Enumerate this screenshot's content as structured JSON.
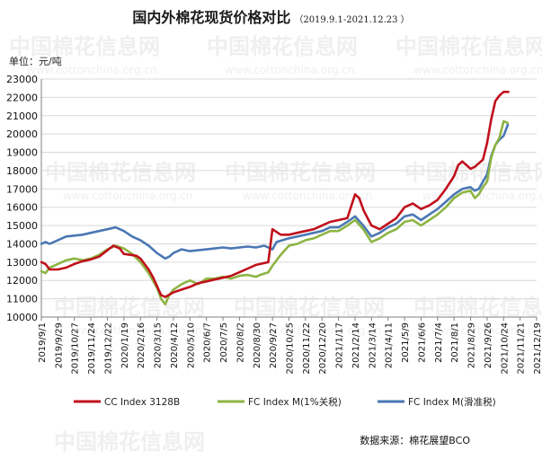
{
  "header": {
    "title": "国内外棉花现货价格对比",
    "subtitle": "（2019.9.1-2021.12.23 ）",
    "unit": "单位：元/吨"
  },
  "footer": {
    "source": "数据来源：棉花展望BCO"
  },
  "watermark": {
    "cn": "中国棉花信息网",
    "url": "www.cottonchina.org.cn"
  },
  "colors": {
    "cc": "#c0101c",
    "fc1": "#8db443",
    "fc2": "#4a77b4",
    "axis": "#7f7f7f",
    "grid": "#d9d9d9"
  },
  "chart_data": {
    "type": "line",
    "ylim": [
      10000,
      23000
    ],
    "yticks": [
      10000,
      11000,
      12000,
      13000,
      14000,
      15000,
      16000,
      17000,
      18000,
      19000,
      20000,
      21000,
      22000,
      23000
    ],
    "xlim": [
      "2019-09-01",
      "2021-12-19"
    ],
    "xticks": [
      "2019/9/1",
      "2019/9/29",
      "2019/10/27",
      "2019/11/24",
      "2019/12/22",
      "2020/1/19",
      "2020/2/16",
      "2020/3/15",
      "2020/4/12",
      "2020/5/10",
      "2020/6/7",
      "2020/7/5",
      "2020/8/2",
      "2020/8/30",
      "2020/9/27",
      "2020/10/25",
      "2020/11/22",
      "2020/12/20",
      "2021/1/17",
      "2021/2/14",
      "2021/3/14",
      "2021/4/11",
      "2021/5/9",
      "2021/6/6",
      "2021/7/4",
      "2021/8/1",
      "2021/8/29",
      "2021/9/26",
      "2021/10/24",
      "2021/11/21",
      "2021/12/19"
    ],
    "grid": "horizontal",
    "legend_position": "bottom",
    "series": [
      {
        "name": "CC Index 3128B",
        "color": "#c0101c",
        "points": [
          [
            "2019-09-01",
            13000
          ],
          [
            "2019-09-08",
            12900
          ],
          [
            "2019-09-15",
            12600
          ],
          [
            "2019-09-29",
            12600
          ],
          [
            "2019-10-13",
            12700
          ],
          [
            "2019-10-27",
            12900
          ],
          [
            "2019-11-10",
            13050
          ],
          [
            "2019-11-24",
            13150
          ],
          [
            "2019-12-08",
            13300
          ],
          [
            "2019-12-22",
            13650
          ],
          [
            "2020-01-01",
            13900
          ],
          [
            "2020-01-12",
            13750
          ],
          [
            "2020-01-19",
            13450
          ],
          [
            "2020-02-09",
            13350
          ],
          [
            "2020-02-16",
            13200
          ],
          [
            "2020-02-23",
            12900
          ],
          [
            "2020-03-01",
            12600
          ],
          [
            "2020-03-08",
            12200
          ],
          [
            "2020-03-15",
            11700
          ],
          [
            "2020-03-22",
            11200
          ],
          [
            "2020-03-29",
            11100
          ],
          [
            "2020-04-12",
            11350
          ],
          [
            "2020-04-26",
            11500
          ],
          [
            "2020-05-10",
            11650
          ],
          [
            "2020-05-24",
            11850
          ],
          [
            "2020-06-07",
            11950
          ],
          [
            "2020-06-21",
            12050
          ],
          [
            "2020-07-05",
            12150
          ],
          [
            "2020-07-19",
            12250
          ],
          [
            "2020-08-02",
            12450
          ],
          [
            "2020-08-16",
            12650
          ],
          [
            "2020-08-30",
            12850
          ],
          [
            "2020-09-13",
            12950
          ],
          [
            "2020-09-20",
            13000
          ],
          [
            "2020-09-27",
            14800
          ],
          [
            "2020-10-11",
            14500
          ],
          [
            "2020-10-25",
            14500
          ],
          [
            "2020-11-08",
            14600
          ],
          [
            "2020-11-22",
            14700
          ],
          [
            "2020-12-06",
            14800
          ],
          [
            "2020-12-20",
            15000
          ],
          [
            "2021-01-03",
            15200
          ],
          [
            "2021-01-17",
            15300
          ],
          [
            "2021-02-01",
            15400
          ],
          [
            "2021-02-07",
            16000
          ],
          [
            "2021-02-14",
            16700
          ],
          [
            "2021-02-21",
            16500
          ],
          [
            "2021-03-01",
            15800
          ],
          [
            "2021-03-14",
            15000
          ],
          [
            "2021-03-28",
            14800
          ],
          [
            "2021-04-11",
            15100
          ],
          [
            "2021-04-25",
            15400
          ],
          [
            "2021-05-09",
            16000
          ],
          [
            "2021-05-23",
            16200
          ],
          [
            "2021-06-06",
            15900
          ],
          [
            "2021-06-20",
            16100
          ],
          [
            "2021-07-04",
            16400
          ],
          [
            "2021-07-18",
            17000
          ],
          [
            "2021-08-01",
            17700
          ],
          [
            "2021-08-08",
            18300
          ],
          [
            "2021-08-15",
            18500
          ],
          [
            "2021-08-29",
            18100
          ],
          [
            "2021-09-05",
            18200
          ],
          [
            "2021-09-12",
            18400
          ],
          [
            "2021-09-19",
            18600
          ],
          [
            "2021-09-26",
            19500
          ],
          [
            "2021-10-03",
            20800
          ],
          [
            "2021-10-10",
            21800
          ],
          [
            "2021-10-17",
            22100
          ],
          [
            "2021-10-24",
            22300
          ],
          [
            "2021-11-01",
            22300
          ]
        ]
      },
      {
        "name": "FC Index M(1%关税)",
        "color": "#8db443",
        "points": [
          [
            "2019-09-01",
            12500
          ],
          [
            "2019-09-08",
            12400
          ],
          [
            "2019-09-15",
            12700
          ],
          [
            "2019-09-29",
            12900
          ],
          [
            "2019-10-13",
            13100
          ],
          [
            "2019-10-27",
            13200
          ],
          [
            "2019-11-10",
            13100
          ],
          [
            "2019-11-24",
            13200
          ],
          [
            "2019-12-08",
            13400
          ],
          [
            "2019-12-22",
            13700
          ],
          [
            "2020-01-05",
            13900
          ],
          [
            "2020-01-19",
            13750
          ],
          [
            "2020-02-02",
            13450
          ],
          [
            "2020-02-16",
            13000
          ],
          [
            "2020-03-01",
            12400
          ],
          [
            "2020-03-15",
            11600
          ],
          [
            "2020-03-22",
            11000
          ],
          [
            "2020-03-29",
            10700
          ],
          [
            "2020-04-05",
            11200
          ],
          [
            "2020-04-12",
            11500
          ],
          [
            "2020-04-26",
            11800
          ],
          [
            "2020-05-10",
            12000
          ],
          [
            "2020-05-24",
            11800
          ],
          [
            "2020-06-07",
            12100
          ],
          [
            "2020-06-21",
            12100
          ],
          [
            "2020-07-05",
            12200
          ],
          [
            "2020-07-19",
            12100
          ],
          [
            "2020-08-02",
            12250
          ],
          [
            "2020-08-16",
            12300
          ],
          [
            "2020-08-30",
            12200
          ],
          [
            "2020-09-06",
            12300
          ],
          [
            "2020-09-20",
            12450
          ],
          [
            "2020-09-27",
            12800
          ],
          [
            "2020-10-11",
            13400
          ],
          [
            "2020-10-25",
            13900
          ],
          [
            "2020-11-08",
            14000
          ],
          [
            "2020-11-22",
            14200
          ],
          [
            "2020-12-06",
            14300
          ],
          [
            "2020-12-20",
            14500
          ],
          [
            "2021-01-03",
            14700
          ],
          [
            "2021-01-17",
            14700
          ],
          [
            "2021-02-01",
            15000
          ],
          [
            "2021-02-14",
            15300
          ],
          [
            "2021-02-28",
            14800
          ],
          [
            "2021-03-14",
            14100
          ],
          [
            "2021-03-28",
            14300
          ],
          [
            "2021-04-11",
            14600
          ],
          [
            "2021-04-25",
            14800
          ],
          [
            "2021-05-09",
            15200
          ],
          [
            "2021-05-23",
            15300
          ],
          [
            "2021-06-06",
            15000
          ],
          [
            "2021-06-20",
            15300
          ],
          [
            "2021-07-04",
            15600
          ],
          [
            "2021-07-18",
            16000
          ],
          [
            "2021-08-01",
            16500
          ],
          [
            "2021-08-15",
            16800
          ],
          [
            "2021-08-29",
            16900
          ],
          [
            "2021-09-05",
            16500
          ],
          [
            "2021-09-12",
            16700
          ],
          [
            "2021-09-19",
            17100
          ],
          [
            "2021-09-26",
            17400
          ],
          [
            "2021-10-03",
            18700
          ],
          [
            "2021-10-10",
            19400
          ],
          [
            "2021-10-17",
            19800
          ],
          [
            "2021-10-24",
            20700
          ],
          [
            "2021-10-31",
            20600
          ]
        ]
      },
      {
        "name": "FC Index M(滑准税)",
        "color": "#4a77b4",
        "points": [
          [
            "2019-09-01",
            14000
          ],
          [
            "2019-09-08",
            14100
          ],
          [
            "2019-09-15",
            14000
          ],
          [
            "2019-09-29",
            14200
          ],
          [
            "2019-10-13",
            14400
          ],
          [
            "2019-10-27",
            14450
          ],
          [
            "2019-11-10",
            14500
          ],
          [
            "2019-11-24",
            14600
          ],
          [
            "2019-12-08",
            14700
          ],
          [
            "2019-12-22",
            14800
          ],
          [
            "2020-01-05",
            14900
          ],
          [
            "2020-01-19",
            14700
          ],
          [
            "2020-02-02",
            14400
          ],
          [
            "2020-02-16",
            14200
          ],
          [
            "2020-03-01",
            13900
          ],
          [
            "2020-03-15",
            13500
          ],
          [
            "2020-03-29",
            13200
          ],
          [
            "2020-04-05",
            13300
          ],
          [
            "2020-04-12",
            13500
          ],
          [
            "2020-04-26",
            13700
          ],
          [
            "2020-05-10",
            13600
          ],
          [
            "2020-05-24",
            13650
          ],
          [
            "2020-06-07",
            13700
          ],
          [
            "2020-06-21",
            13750
          ],
          [
            "2020-07-05",
            13800
          ],
          [
            "2020-07-19",
            13750
          ],
          [
            "2020-08-02",
            13800
          ],
          [
            "2020-08-16",
            13850
          ],
          [
            "2020-08-30",
            13800
          ],
          [
            "2020-09-13",
            13900
          ],
          [
            "2020-09-27",
            13700
          ],
          [
            "2020-10-04",
            14100
          ],
          [
            "2020-10-25",
            14300
          ],
          [
            "2020-11-08",
            14400
          ],
          [
            "2020-11-22",
            14500
          ],
          [
            "2020-12-06",
            14600
          ],
          [
            "2020-12-20",
            14700
          ],
          [
            "2021-01-03",
            14900
          ],
          [
            "2021-01-17",
            14900
          ],
          [
            "2021-02-01",
            15200
          ],
          [
            "2021-02-14",
            15500
          ],
          [
            "2021-02-28",
            15000
          ],
          [
            "2021-03-14",
            14400
          ],
          [
            "2021-03-28",
            14600
          ],
          [
            "2021-04-11",
            14900
          ],
          [
            "2021-04-25",
            15100
          ],
          [
            "2021-05-09",
            15500
          ],
          [
            "2021-05-23",
            15600
          ],
          [
            "2021-06-06",
            15300
          ],
          [
            "2021-06-20",
            15600
          ],
          [
            "2021-07-04",
            15900
          ],
          [
            "2021-07-18",
            16300
          ],
          [
            "2021-08-01",
            16700
          ],
          [
            "2021-08-15",
            17000
          ],
          [
            "2021-08-29",
            17100
          ],
          [
            "2021-09-05",
            16900
          ],
          [
            "2021-09-12",
            17000
          ],
          [
            "2021-09-19",
            17400
          ],
          [
            "2021-09-26",
            17800
          ],
          [
            "2021-10-03",
            18800
          ],
          [
            "2021-10-10",
            19400
          ],
          [
            "2021-10-17",
            19700
          ],
          [
            "2021-10-24",
            19900
          ],
          [
            "2021-10-31",
            20500
          ]
        ]
      }
    ]
  }
}
